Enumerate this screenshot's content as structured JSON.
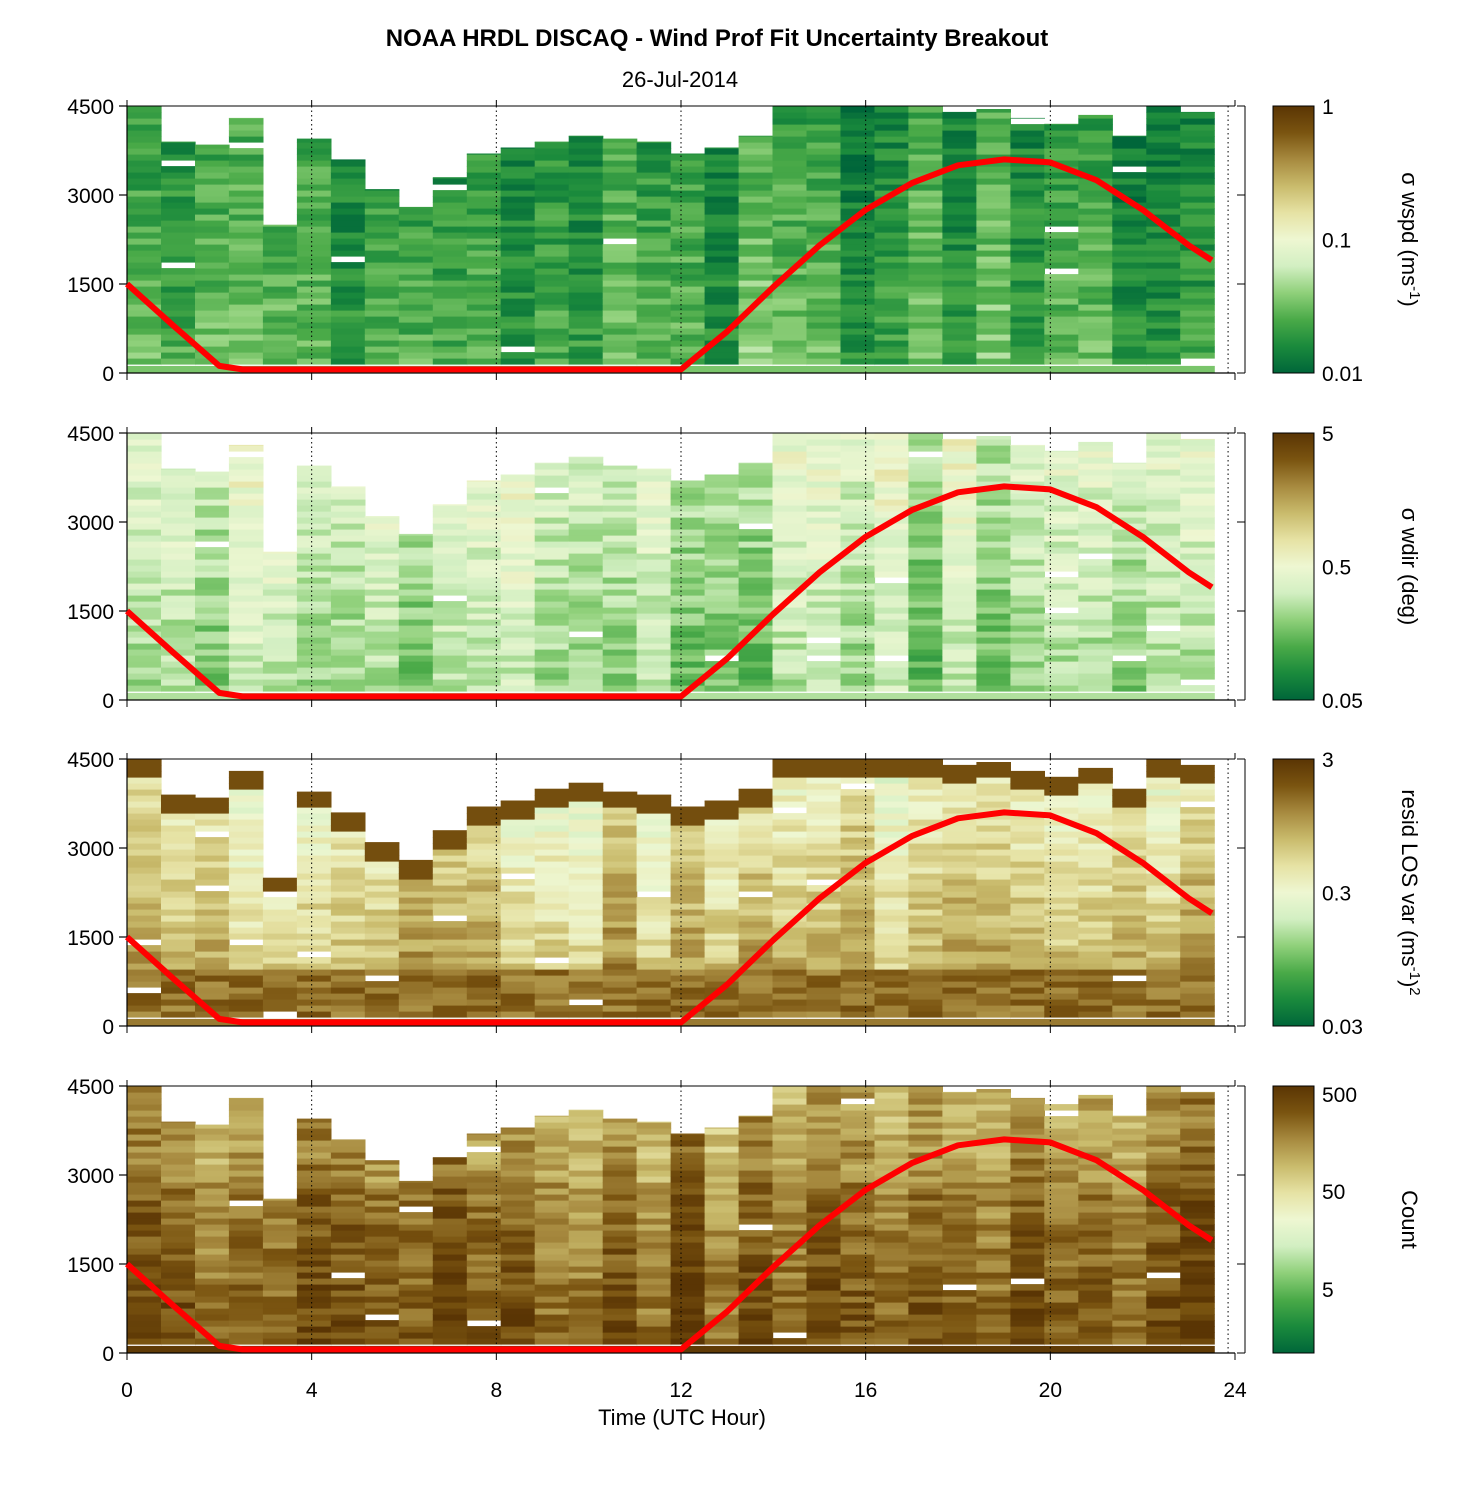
{
  "figure": {
    "title": "NOAA HRDL DISCAQ - Wind Prof Fit Uncertainty Breakout",
    "subtitle": "26-Jul-2014",
    "xlabel": "Time (UTC Hour)"
  },
  "colors": {
    "line": "#ff0000",
    "colormap": [
      "#00663a",
      "#1a8a3c",
      "#4aaa48",
      "#8fd07a",
      "#d2efc2",
      "#eef7d2",
      "#e6e2a4",
      "#c9bb6c",
      "#a78a3f",
      "#7a5410",
      "#5a3504"
    ]
  },
  "chart_data": [
    {
      "type": "heatmap",
      "name": "sigma-wspd",
      "colorbar_label": "σ wspd (ms",
      "colorbar_sup": "-1",
      "colorbar_label_end": ")",
      "colorbar_ticks": [
        "1",
        "0.1",
        "0.01"
      ],
      "colorbar_scale": "log",
      "clim": [
        0.01,
        1
      ],
      "xlim": [
        0,
        24
      ],
      "ylim": [
        0,
        4500
      ],
      "xticks": [
        0,
        4,
        8,
        12,
        16,
        20,
        24
      ],
      "yticks": [
        0,
        1500,
        3000,
        4500
      ],
      "ytick_labels": [
        "0",
        "1500",
        "3000",
        "4500"
      ],
      "base_level": 0.22,
      "upper_level": 0.12,
      "top_ranges": [
        4500,
        3900,
        3850,
        4300,
        2500,
        3950,
        3600,
        3100,
        2800,
        3300,
        3700,
        3800,
        3900,
        4000,
        3950,
        3900,
        3700,
        3800,
        4000,
        4500,
        4500,
        4500,
        4500,
        4500,
        4400,
        4450,
        4300,
        4200,
        4350,
        4000,
        4500,
        4400
      ]
    },
    {
      "type": "heatmap",
      "name": "sigma-wdir",
      "colorbar_label": "σ wdir (deg)",
      "colorbar_sup": "",
      "colorbar_label_end": "",
      "colorbar_ticks": [
        "5",
        "0.5",
        "0.05"
      ],
      "colorbar_scale": "log",
      "clim": [
        0.05,
        5
      ],
      "xlim": [
        0,
        24
      ],
      "ylim": [
        0,
        4500
      ],
      "xticks": [
        0,
        4,
        8,
        12,
        16,
        20,
        24
      ],
      "yticks": [
        0,
        1500,
        3000,
        4500
      ],
      "ytick_labels": [
        "0",
        "1500",
        "3000",
        "4500"
      ],
      "base_level": 0.3,
      "upper_level": 0.45,
      "top_ranges": [
        4500,
        3900,
        3850,
        4300,
        2500,
        3950,
        3600,
        3100,
        2800,
        3300,
        3700,
        3800,
        4000,
        4100,
        3950,
        3900,
        3700,
        3800,
        4000,
        4500,
        4500,
        4500,
        4500,
        4500,
        4400,
        4450,
        4300,
        4200,
        4350,
        4000,
        4500,
        4400
      ]
    },
    {
      "type": "heatmap",
      "name": "resid-los-var",
      "colorbar_label": "resid LOS var (ms",
      "colorbar_sup": "-1",
      "colorbar_label_end": ")",
      "colorbar_sup2": "2",
      "colorbar_ticks": [
        "3",
        "0.3",
        "0.03"
      ],
      "colorbar_scale": "log",
      "clim": [
        0.03,
        3
      ],
      "xlim": [
        0,
        24
      ],
      "ylim": [
        0,
        4500
      ],
      "xticks": [
        0,
        4,
        8,
        12,
        16,
        20,
        24
      ],
      "yticks": [
        0,
        1500,
        3000,
        4500
      ],
      "ytick_labels": [
        "0",
        "1500",
        "3000",
        "4500"
      ],
      "base_level": 0.78,
      "upper_level": 0.5,
      "top_ranges": [
        4500,
        3900,
        3850,
        4300,
        2500,
        3950,
        3600,
        3100,
        2800,
        3300,
        3700,
        3800,
        4000,
        4100,
        3950,
        3900,
        3700,
        3800,
        4000,
        4500,
        4500,
        4500,
        4500,
        4500,
        4400,
        4450,
        4300,
        4200,
        4350,
        4000,
        4500,
        4400
      ]
    },
    {
      "type": "heatmap",
      "name": "count",
      "colorbar_label": "Count",
      "colorbar_sup": "",
      "colorbar_label_end": "",
      "colorbar_ticks": [
        "500",
        "50",
        "5"
      ],
      "colorbar_scale": "log",
      "clim": [
        1,
        700
      ],
      "xlim": [
        0,
        24
      ],
      "ylim": [
        0,
        4500
      ],
      "xticks": [
        0,
        4,
        8,
        12,
        16,
        20,
        24
      ],
      "yticks": [
        0,
        1500,
        3000,
        4500
      ],
      "ytick_labels": [
        "0",
        "1500",
        "3000",
        "4500"
      ],
      "base_level": 0.93,
      "upper_level": 0.8,
      "top_ranges": [
        4500,
        3900,
        3850,
        4300,
        2600,
        3950,
        3600,
        3250,
        2900,
        3300,
        3700,
        3800,
        4000,
        4100,
        3950,
        3900,
        3700,
        3800,
        4000,
        4500,
        4500,
        4500,
        4500,
        4500,
        4400,
        4450,
        4300,
        4200,
        4350,
        4000,
        4500,
        4400
      ]
    }
  ],
  "bl_height_line": {
    "x": [
      0,
      1,
      2,
      2.5,
      12,
      13,
      14,
      15,
      16,
      17,
      18,
      19,
      20,
      21,
      22,
      23,
      23.5
    ],
    "y": [
      1500,
      800,
      120,
      60,
      60,
      700,
      1450,
      2150,
      2750,
      3200,
      3500,
      3600,
      3550,
      3250,
      2750,
      2150,
      1900
    ]
  },
  "x_tick_labels": [
    "0",
    "4",
    "8",
    "12",
    "16",
    "20",
    "24"
  ]
}
